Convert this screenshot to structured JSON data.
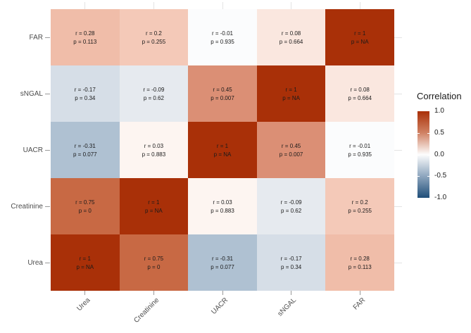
{
  "colors": {
    "background": "#FFFFFF",
    "axis_text": "#4D4D4D",
    "cell_text": "#1A1A1A",
    "tick": "#999999",
    "gridline": "#E3E3E3"
  },
  "legend": {
    "title": "Correlation",
    "tick_labels": [
      "1.0",
      "0.5",
      "0.0",
      "-0.5",
      "-1.0"
    ],
    "gradient": {
      "high": "#A93008",
      "q3": "#D08264",
      "mid": "#FDFDFD",
      "q1": "#8EA6BE",
      "low": "#1F4E79"
    }
  },
  "chart_data": {
    "type": "heatmap",
    "title": "",
    "value_name": "Correlation",
    "value_range": [
      -1,
      1
    ],
    "x_categories": [
      "Urea",
      "Creatinine",
      "UACR",
      "sNGAL",
      "FAR"
    ],
    "y_categories": [
      "FAR",
      "sNGAL",
      "UACR",
      "Creatinine",
      "Urea"
    ],
    "cells": [
      [
        {
          "r": 0.28,
          "p": 0.113,
          "r_label": "r = 0.28",
          "p_label": "p = 0.113",
          "color": "#F0BDA9"
        },
        {
          "r": 0.2,
          "p": 0.255,
          "r_label": "r = 0.2",
          "p_label": "p = 0.255",
          "color": "#F4C9B8"
        },
        {
          "r": -0.01,
          "p": 0.935,
          "r_label": "r = -0.01",
          "p_label": "p = 0.935",
          "color": "#FBFCFD"
        },
        {
          "r": 0.08,
          "p": 0.664,
          "r_label": "r = 0.08",
          "p_label": "p = 0.664",
          "color": "#FAE7DF"
        },
        {
          "r": 1,
          "p": "NA",
          "r_label": "r = 1",
          "p_label": "p = NA",
          "color": "#A93008"
        }
      ],
      [
        {
          "r": -0.17,
          "p": 0.34,
          "r_label": "r = -0.17",
          "p_label": "p = 0.34",
          "color": "#D6DEE7"
        },
        {
          "r": -0.09,
          "p": 0.62,
          "r_label": "r = -0.09",
          "p_label": "p = 0.62",
          "color": "#E6EAEF"
        },
        {
          "r": 0.45,
          "p": 0.007,
          "r_label": "r = 0.45",
          "p_label": "p = 0.007",
          "color": "#DB8F75"
        },
        {
          "r": 1,
          "p": "NA",
          "r_label": "r = 1",
          "p_label": "p = NA",
          "color": "#A93008"
        },
        {
          "r": 0.08,
          "p": 0.664,
          "r_label": "r = 0.08",
          "p_label": "p = 0.664",
          "color": "#FAE7DF"
        }
      ],
      [
        {
          "r": -0.31,
          "p": 0.077,
          "r_label": "r = -0.31",
          "p_label": "p = 0.077",
          "color": "#AFC1D2"
        },
        {
          "r": 0.03,
          "p": 0.883,
          "r_label": "r = 0.03",
          "p_label": "p = 0.883",
          "color": "#FDF5F1"
        },
        {
          "r": 1,
          "p": "NA",
          "r_label": "r = 1",
          "p_label": "p = NA",
          "color": "#A93008"
        },
        {
          "r": 0.45,
          "p": 0.007,
          "r_label": "r = 0.45",
          "p_label": "p = 0.007",
          "color": "#DB8F75"
        },
        {
          "r": -0.01,
          "p": 0.935,
          "r_label": "r = -0.01",
          "p_label": "p = 0.935",
          "color": "#FBFCFD"
        }
      ],
      [
        {
          "r": 0.75,
          "p": 0,
          "r_label": "r = 0.75",
          "p_label": "p = 0",
          "color": "#C86944"
        },
        {
          "r": 1,
          "p": "NA",
          "r_label": "r = 1",
          "p_label": "p = NA",
          "color": "#A93008"
        },
        {
          "r": 0.03,
          "p": 0.883,
          "r_label": "r = 0.03",
          "p_label": "p = 0.883",
          "color": "#FDF5F1"
        },
        {
          "r": -0.09,
          "p": 0.62,
          "r_label": "r = -0.09",
          "p_label": "p = 0.62",
          "color": "#E6EAEF"
        },
        {
          "r": 0.2,
          "p": 0.255,
          "r_label": "r = 0.2",
          "p_label": "p = 0.255",
          "color": "#F4C9B8"
        }
      ],
      [
        {
          "r": 1,
          "p": "NA",
          "r_label": "r = 1",
          "p_label": "p = NA",
          "color": "#A93008"
        },
        {
          "r": 0.75,
          "p": 0,
          "r_label": "r = 0.75",
          "p_label": "p = 0",
          "color": "#C86944"
        },
        {
          "r": -0.31,
          "p": 0.077,
          "r_label": "r = -0.31",
          "p_label": "p = 0.077",
          "color": "#AFC1D2"
        },
        {
          "r": -0.17,
          "p": 0.34,
          "r_label": "r = -0.17",
          "p_label": "p = 0.34",
          "color": "#D6DEE7"
        },
        {
          "r": 0.28,
          "p": 0.113,
          "r_label": "r = 0.28",
          "p_label": "p = 0.113",
          "color": "#F0BDA9"
        }
      ]
    ]
  }
}
